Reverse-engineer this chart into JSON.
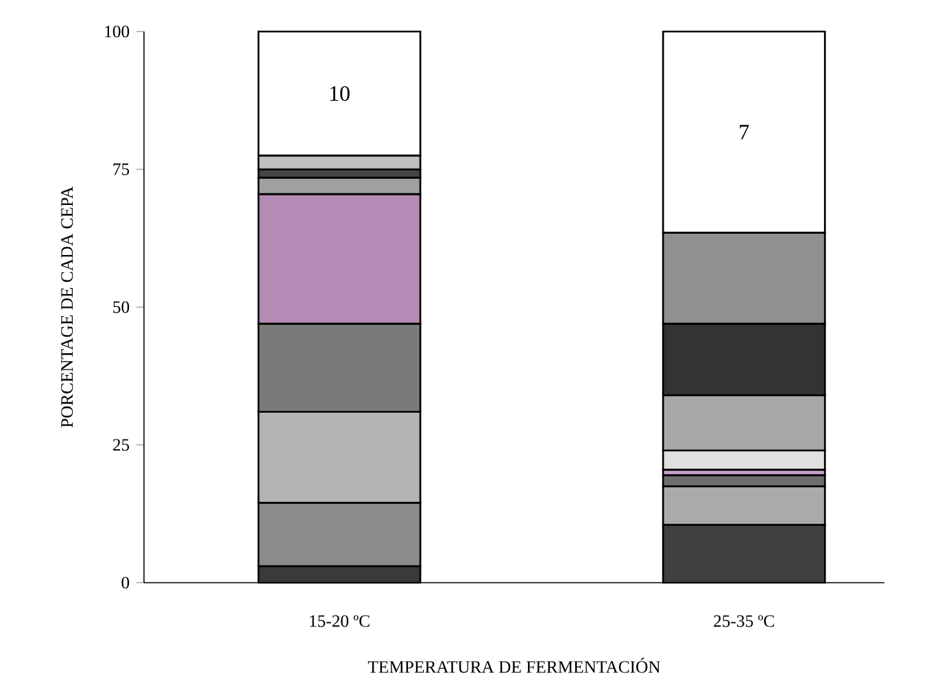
{
  "chart_data": {
    "type": "bar",
    "stacked": true,
    "xlabel": "TEMPERATURA DE FERMENTACIÓN",
    "ylabel": "PORCENTAGE DE CADA CEPA",
    "categories": [
      "15-20 ºC",
      "25-35 ºC"
    ],
    "ylim": [
      0,
      100
    ],
    "yticks": [
      0,
      25,
      50,
      75,
      100
    ],
    "grid": false,
    "series": [
      {
        "color": "#3a3a3a",
        "values": [
          3,
          null
        ]
      },
      {
        "color": "#8c8c8c",
        "values": [
          11.5,
          null
        ]
      },
      {
        "color": "#b4b4b4",
        "values": [
          16.5,
          null
        ]
      },
      {
        "color": "#7a7a7a",
        "values": [
          16,
          null
        ]
      },
      {
        "color": "#b58cb5",
        "values": [
          23.5,
          null
        ]
      },
      {
        "color": "#a0a0a0",
        "values": [
          3,
          null
        ]
      },
      {
        "color": "#454545",
        "values": [
          1.5,
          null
        ]
      },
      {
        "color": "#c0c0c0",
        "values": [
          2.5,
          null
        ]
      },
      {
        "color": "#ffffff",
        "values": [
          22.5,
          null
        ]
      },
      {
        "color": "#404040",
        "values": [
          null,
          10.5
        ]
      },
      {
        "color": "#aaaaaa",
        "values": [
          null,
          7
        ]
      },
      {
        "color": "#6e6e6e",
        "values": [
          null,
          2
        ]
      },
      {
        "color": "#c8a0c8",
        "values": [
          null,
          1
        ]
      },
      {
        "color": "#e0e0e0",
        "values": [
          null,
          3.5
        ]
      },
      {
        "color": "#a8a8a8",
        "values": [
          null,
          10
        ]
      },
      {
        "color": "#333333",
        "values": [
          null,
          13
        ]
      },
      {
        "color": "#909090",
        "values": [
          null,
          16.5
        ]
      },
      {
        "color": "#ffffff",
        "values": [
          null,
          36.5
        ]
      }
    ],
    "annotations": [
      "10",
      "7"
    ]
  }
}
